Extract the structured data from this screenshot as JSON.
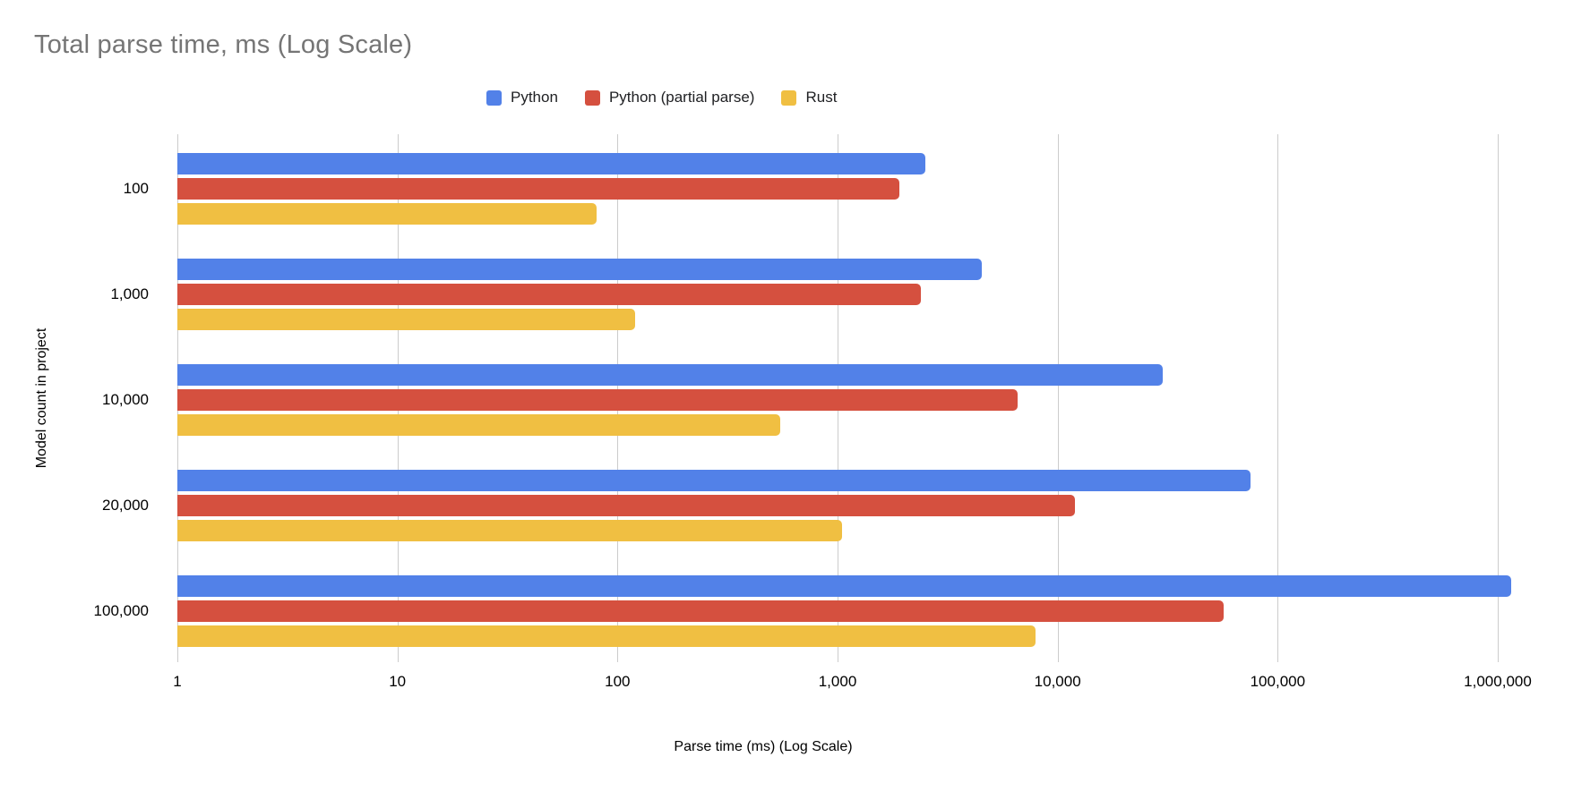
{
  "chart_data": {
    "type": "bar",
    "orientation": "horizontal",
    "title": "Total parse time, ms (Log Scale)",
    "xlabel": "Parse time (ms) (Log Scale)",
    "ylabel": "Model count in project",
    "x_scale": "log",
    "xlim": [
      1,
      1000000
    ],
    "x_ticks": [
      {
        "value": 1,
        "label": "1"
      },
      {
        "value": 10,
        "label": "10"
      },
      {
        "value": 100,
        "label": "100"
      },
      {
        "value": 1000,
        "label": "1,000"
      },
      {
        "value": 10000,
        "label": "10,000"
      },
      {
        "value": 100000,
        "label": "100,000"
      },
      {
        "value": 1000000,
        "label": "1,000,000"
      }
    ],
    "categories": [
      "100",
      "1,000",
      "10,000",
      "20,000",
      "100,000"
    ],
    "series": [
      {
        "name": "Python",
        "color": "#5281e8",
        "values": [
          2500,
          4500,
          30000,
          75000,
          1150000
        ]
      },
      {
        "name": "Python (partial parse)",
        "color": "#d5503f",
        "values": [
          1900,
          2400,
          6600,
          12000,
          57000
        ]
      },
      {
        "name": "Rust",
        "color": "#f0bf42",
        "values": [
          80,
          120,
          550,
          1050,
          7900
        ]
      }
    ],
    "legend_position": "top",
    "grid": true,
    "colors": {
      "title_text": "#757575",
      "axis_text": "#000000",
      "legend_text": "#202124",
      "gridline": "#cccccc",
      "background": "#ffffff"
    }
  }
}
